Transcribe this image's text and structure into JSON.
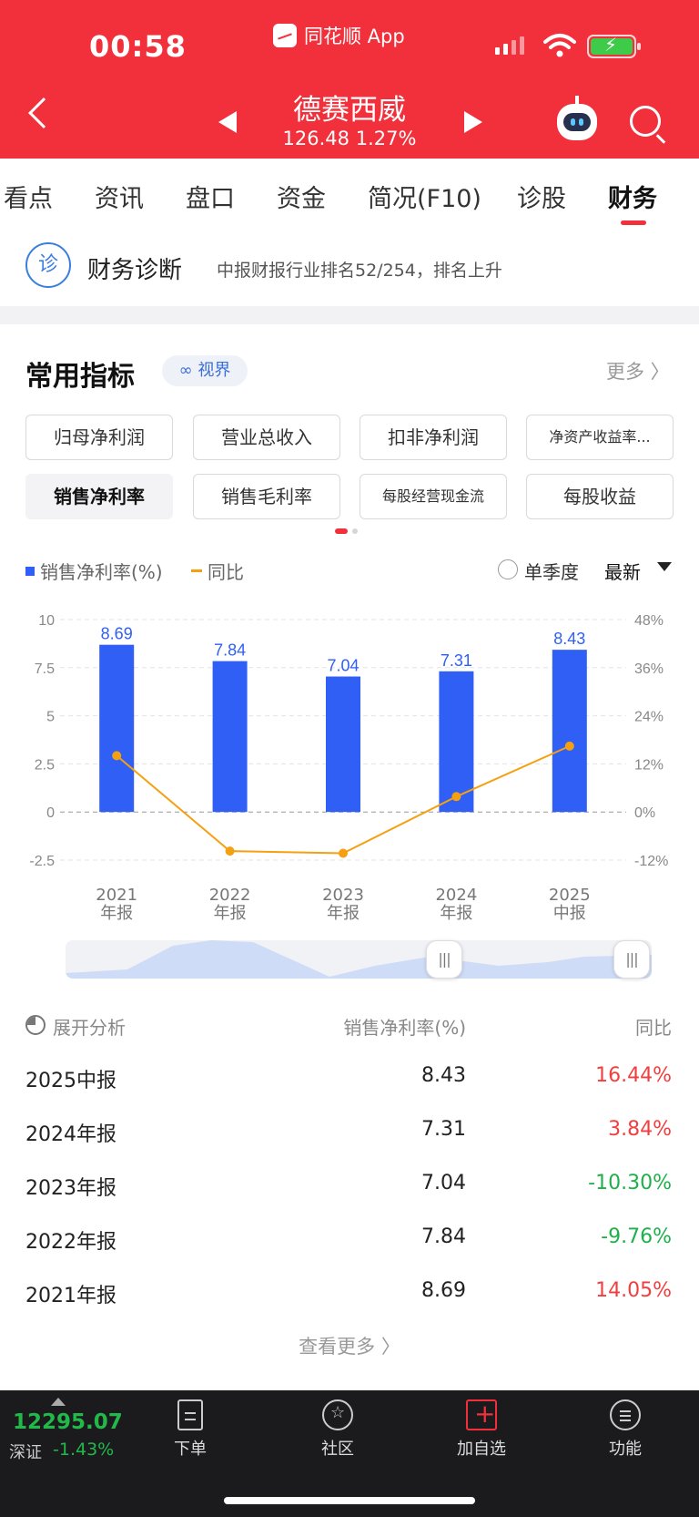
{
  "status_bar": {
    "time": "00:58",
    "app_name": "同花顺 App"
  },
  "header": {
    "stock_name": "德赛西威",
    "price": "126.48",
    "change_pct": "1.27%"
  },
  "tabs": [
    {
      "label": "看点"
    },
    {
      "label": "资讯"
    },
    {
      "label": "盘口"
    },
    {
      "label": "资金"
    },
    {
      "label": "简况(F10)"
    },
    {
      "label": "诊股"
    },
    {
      "label": "财务"
    }
  ],
  "diagnosis": {
    "icon_text": "诊",
    "title": "财务诊断",
    "text": "中报财报行业排名52/254，排名上升"
  },
  "indicators": {
    "title": "常用指标",
    "vision_label": "视界",
    "more_label": "更多 〉",
    "chips": [
      {
        "label": "归母净利润"
      },
      {
        "label": "营业总收入"
      },
      {
        "label": "扣非净利润"
      },
      {
        "label": "净资产收益率..."
      },
      {
        "label": "销售净利率"
      },
      {
        "label": "销售毛利率"
      },
      {
        "label": "每股经营现金流"
      },
      {
        "label": "每股收益"
      }
    ],
    "active_chip": "销售净利率"
  },
  "legend": {
    "bar_label": "销售净利率(%)",
    "line_label": "同比",
    "single_quarter": "单季度",
    "latest": "最新"
  },
  "colors": {
    "header_red": "#f2303b",
    "bar_blue": "#2f5ff5",
    "line_orange": "#f5a010",
    "up_red": "#f23e3e",
    "down_green": "#1fb04a"
  },
  "chart_data": {
    "type": "bar",
    "categories": [
      "2021年报",
      "2022年报",
      "2023年报",
      "2024年报",
      "2025中报"
    ],
    "category_lines": [
      [
        "2021",
        "年报"
      ],
      [
        "2022",
        "年报"
      ],
      [
        "2023",
        "年报"
      ],
      [
        "2024",
        "年报"
      ],
      [
        "2025",
        "中报"
      ]
    ],
    "series": [
      {
        "name": "销售净利率(%)",
        "type": "bar",
        "axis": "left",
        "values": [
          8.69,
          7.84,
          7.04,
          7.31,
          8.43
        ]
      },
      {
        "name": "同比",
        "type": "line",
        "axis": "right",
        "values": [
          14.05,
          -9.76,
          -10.3,
          3.84,
          16.44
        ]
      }
    ],
    "bar_labels": [
      "8.69",
      "7.84",
      "7.04",
      "7.31",
      "8.43"
    ],
    "left_ticks": [
      "10",
      "7.5",
      "5",
      "2.5",
      "0",
      "-2.5"
    ],
    "right_ticks": [
      "48%",
      "36%",
      "24%",
      "12%",
      "0%",
      "-12%"
    ],
    "ylim_left": [
      -2.5,
      10
    ],
    "ylim_right": [
      -12,
      48
    ],
    "grid": true,
    "legend": "top-left"
  },
  "table": {
    "analysis_label": "展开分析",
    "col_value": "销售净利率(%)",
    "col_yoy": "同比",
    "rows": [
      {
        "period": "2025中报",
        "value": "8.43",
        "yoy": "16.44%"
      },
      {
        "period": "2024年报",
        "value": "7.31",
        "yoy": "3.84%"
      },
      {
        "period": "2023年报",
        "value": "7.04",
        "yoy": "-10.30%"
      },
      {
        "period": "2022年报",
        "value": "7.84",
        "yoy": "-9.76%"
      },
      {
        "period": "2021年报",
        "value": "8.69",
        "yoy": "14.05%"
      }
    ],
    "see_more": "查看更多 〉"
  },
  "bottom": {
    "index_value": "12295.07",
    "index_name": "深证",
    "index_change": "-1.43%",
    "nav": [
      {
        "label": "下单"
      },
      {
        "label": "社区"
      },
      {
        "label": "加自选"
      },
      {
        "label": "功能"
      }
    ]
  }
}
